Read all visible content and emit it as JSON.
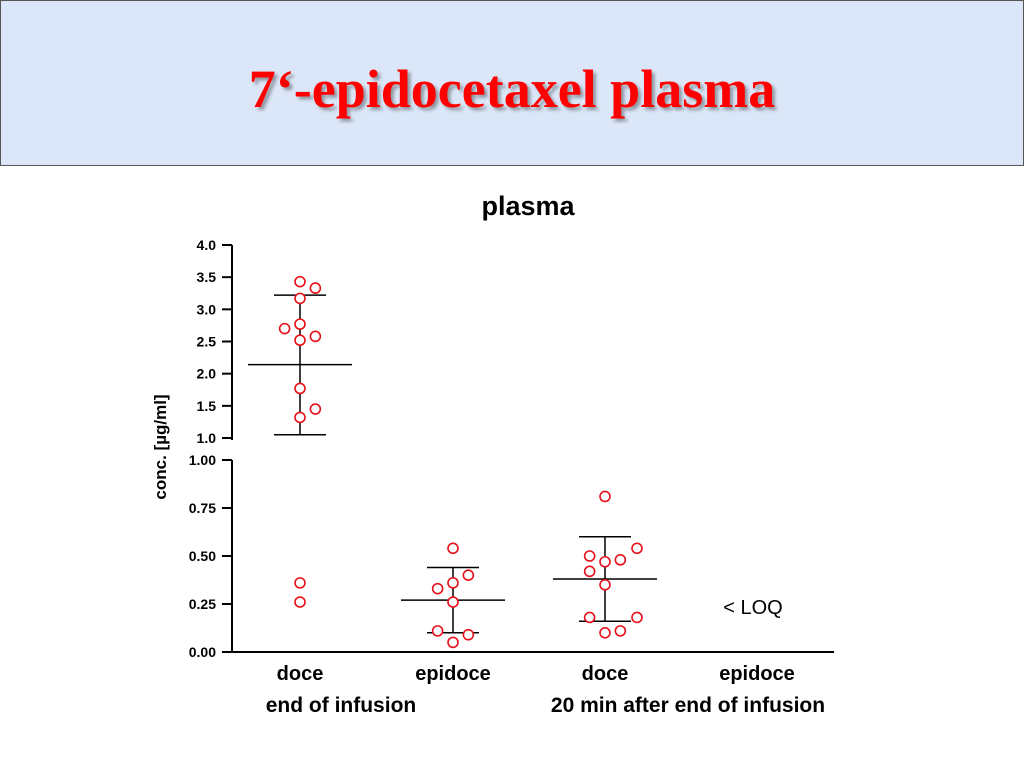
{
  "slide": {
    "title": "7‘-epidocetaxel plasma"
  },
  "chart_data": {
    "type": "scatter",
    "title": "plasma",
    "ylabel": "conc. [µg/ml]",
    "xlabel": "",
    "axis_break": true,
    "upper_segment": {
      "ylim": [
        1.0,
        4.0
      ],
      "ticks": [
        "1.0",
        "1.5",
        "2.0",
        "2.5",
        "3.0",
        "3.5",
        "4.0"
      ]
    },
    "lower_segment": {
      "ylim": [
        0.0,
        1.0
      ],
      "ticks": [
        "0.00",
        "0.25",
        "0.50",
        "0.75",
        "1.00"
      ]
    },
    "categories": [
      "doce",
      "epidoce",
      "doce",
      "epidoce"
    ],
    "groups": [
      "end of infusion",
      "20 min after end of infusion"
    ],
    "annotation": "< LOQ",
    "marker_color": "#e8101a",
    "series": [
      {
        "category_index": 0,
        "points": [
          {
            "x": 0,
            "y": 3.43
          },
          {
            "x": 0.12,
            "y": 3.33
          },
          {
            "x": 0,
            "y": 3.17
          },
          {
            "x": -0.12,
            "y": 2.7
          },
          {
            "x": 0,
            "y": 2.77
          },
          {
            "x": 0.12,
            "y": 2.58
          },
          {
            "x": 0,
            "y": 2.52
          },
          {
            "x": 0,
            "y": 1.77
          },
          {
            "x": 0.12,
            "y": 1.45
          },
          {
            "x": 0,
            "y": 1.32
          },
          {
            "x": 0,
            "y": 0.36
          },
          {
            "x": 0,
            "y": 0.26
          }
        ],
        "mean": 2.14,
        "sd_low": 1.05,
        "sd_high": 3.22
      },
      {
        "category_index": 1,
        "points": [
          {
            "x": 0,
            "y": 0.54
          },
          {
            "x": 0.12,
            "y": 0.4
          },
          {
            "x": 0,
            "y": 0.36
          },
          {
            "x": -0.12,
            "y": 0.33
          },
          {
            "x": 0,
            "y": 0.26
          },
          {
            "x": -0.12,
            "y": 0.11
          },
          {
            "x": 0.12,
            "y": 0.09
          },
          {
            "x": 0,
            "y": 0.05
          }
        ],
        "mean": 0.27,
        "sd_low": 0.1,
        "sd_high": 0.44
      },
      {
        "category_index": 2,
        "points": [
          {
            "x": 0,
            "y": 0.81
          },
          {
            "x": 0.25,
            "y": 0.54
          },
          {
            "x": -0.12,
            "y": 0.5
          },
          {
            "x": 0.12,
            "y": 0.48
          },
          {
            "x": 0,
            "y": 0.47
          },
          {
            "x": -0.12,
            "y": 0.42
          },
          {
            "x": 0,
            "y": 0.35
          },
          {
            "x": -0.12,
            "y": 0.18
          },
          {
            "x": 0.25,
            "y": 0.18
          },
          {
            "x": 0.12,
            "y": 0.11
          },
          {
            "x": 0,
            "y": 0.1
          }
        ],
        "mean": 0.38,
        "sd_low": 0.16,
        "sd_high": 0.6
      }
    ]
  }
}
